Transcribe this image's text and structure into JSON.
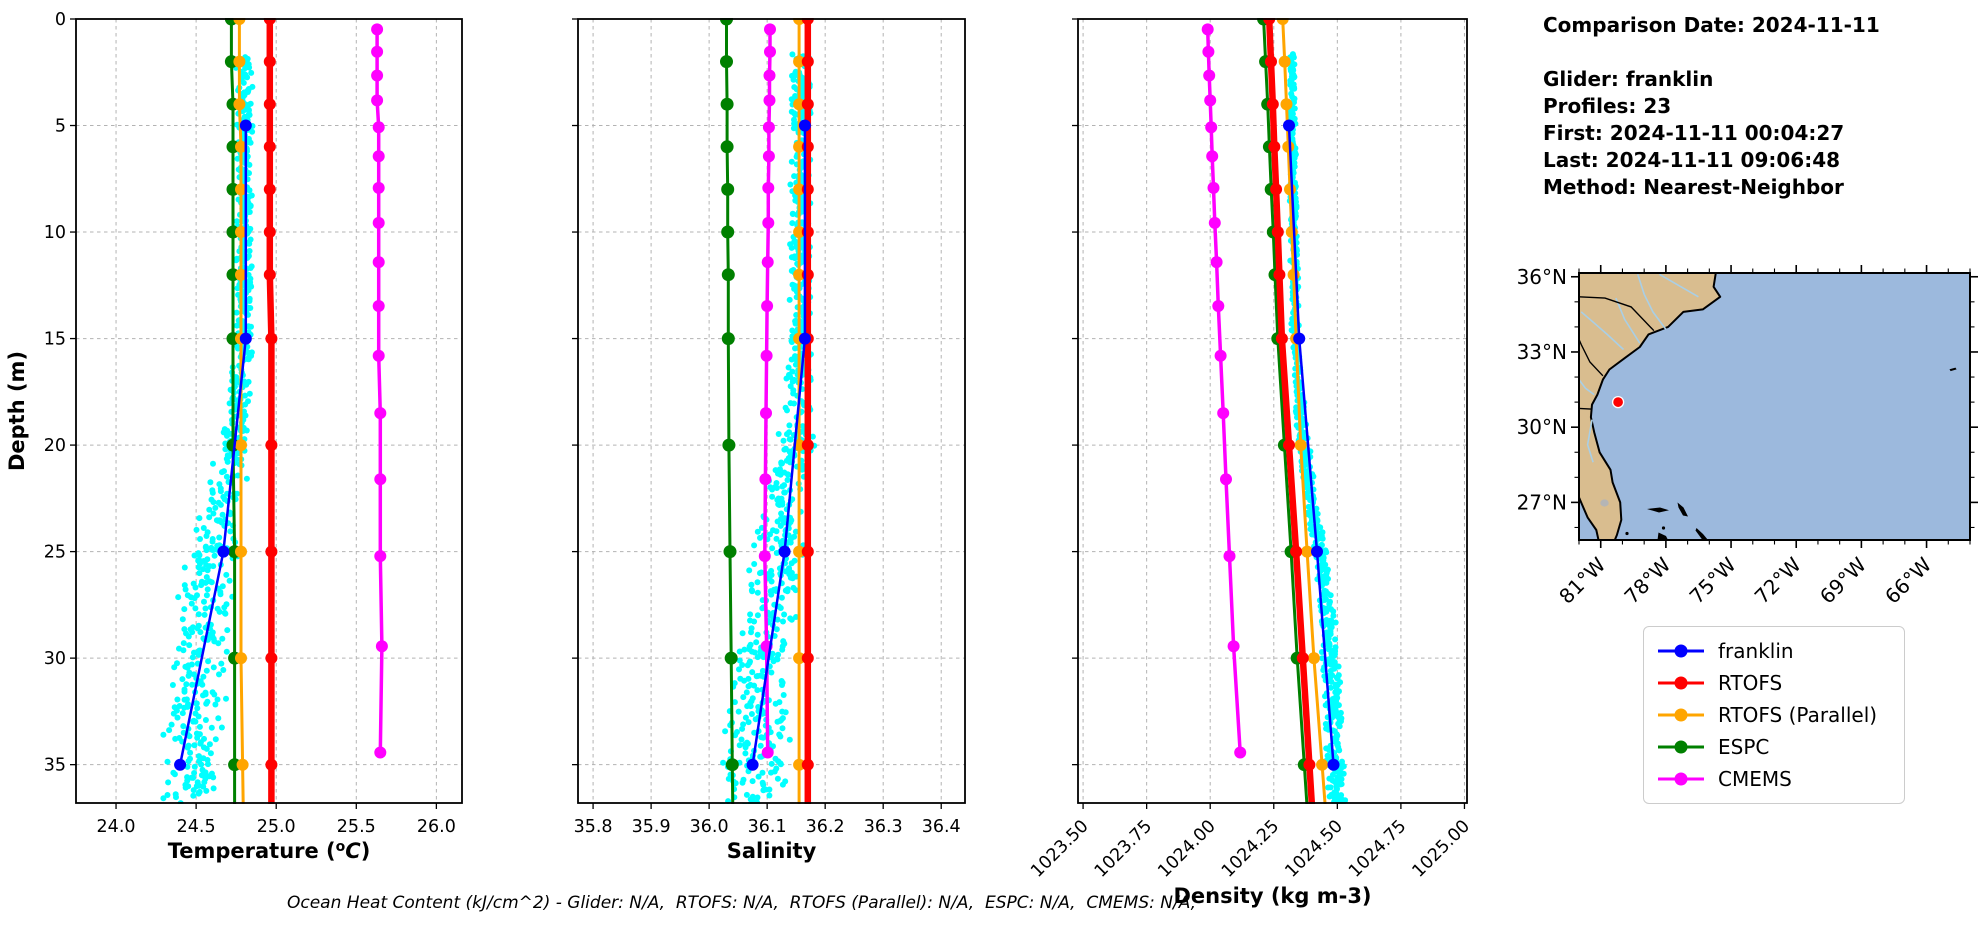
{
  "info_panel": {
    "comparison_date": "Comparison Date: 2024-11-11",
    "glider": "Glider: franklin",
    "profiles": "Profiles: 23",
    "first": "First: 2024-11-11 00:04:27",
    "last": "Last: 2024-11-11 09:06:48",
    "method": "Method: Nearest-Neighbor"
  },
  "footer_note": "Ocean Heat Content (kJ/cm^2) - Glider: N/A,  RTOFS: N/A,  RTOFS (Parallel): N/A,  ESPC: N/A,  CMEMS: N/A,",
  "legend": {
    "items": [
      {
        "label": "franklin",
        "color": "#0000ff"
      },
      {
        "label": "RTOFS",
        "color": "#ff0000"
      },
      {
        "label": "RTOFS (Parallel)",
        "color": "#ffa500"
      },
      {
        "label": "ESPC",
        "color": "#008000"
      },
      {
        "label": "CMEMS",
        "color": "#ff00ff"
      }
    ]
  },
  "map": {
    "extent_lon": [
      -82,
      -64
    ],
    "extent_lat": [
      25.5,
      36.15
    ],
    "lat_tick_labels": [
      "36°N",
      "33°N",
      "30°N",
      "27°N"
    ],
    "lat_tick_values": [
      36,
      33,
      30,
      27
    ],
    "lon_tick_labels": [
      "81°W",
      "78°W",
      "75°W",
      "72°W",
      "69°W",
      "66°W"
    ],
    "lon_tick_values": [
      -81,
      -78,
      -75,
      -72,
      -69,
      -66
    ],
    "glider_location": {
      "lon": -80.2,
      "lat": 31.0
    },
    "marker_color": "#ff0000",
    "land_color": "#d9bd8f",
    "ocean_color": "#9cb9dd",
    "river_color": "#a9cfe6",
    "lake_color": "#b5b5b5"
  },
  "chart_data": [
    {
      "type": "line",
      "name": "temperature",
      "xlabel": "Temperature (°C)",
      "ylabel": "Depth (m)",
      "xlim": [
        23.75,
        26.16
      ],
      "ylim": [
        0,
        36.8
      ],
      "grid": true,
      "xticks": [
        24.0,
        24.5,
        25.0,
        25.5,
        26.0
      ],
      "xtick_labels": [
        "24.0",
        "24.5",
        "25.0",
        "25.5",
        "26.0"
      ],
      "yticks": [
        0,
        5,
        10,
        15,
        20,
        25,
        30,
        35
      ],
      "ytick_labels": [
        "0",
        "5",
        "10",
        "15",
        "20",
        "25",
        "30",
        "35"
      ],
      "rotate_xtick_labels": false,
      "series": [
        {
          "name": "CMEMS",
          "color": "#ff00ff",
          "line_width": 3.5,
          "marker_radius": 6,
          "extend_to_bottom": false,
          "depths": [
            0.49,
            1.54,
            2.65,
            3.82,
            5.08,
            6.44,
            7.93,
            9.57,
            11.41,
            13.47,
            15.81,
            18.5,
            21.6,
            25.21,
            29.44,
            34.43
          ],
          "values": [
            25.63,
            25.63,
            25.63,
            25.63,
            25.64,
            25.64,
            25.64,
            25.64,
            25.64,
            25.64,
            25.64,
            25.65,
            25.65,
            25.65,
            25.66,
            25.65
          ]
        },
        {
          "name": "ESPC",
          "color": "#008000",
          "line_width": 3,
          "marker_radius": 6.5,
          "extend_to_bottom": true,
          "depths": [
            0,
            2,
            4,
            6,
            8,
            10,
            12,
            15,
            20,
            25,
            30,
            35
          ],
          "values": [
            24.72,
            24.72,
            24.73,
            24.73,
            24.73,
            24.73,
            24.73,
            24.73,
            24.73,
            24.74,
            24.74,
            24.74
          ]
        },
        {
          "name": "RTOFS (Parallel)",
          "color": "#ffa500",
          "line_width": 3,
          "marker_radius": 6,
          "extend_to_bottom": true,
          "depths": [
            0,
            2,
            4,
            6,
            8,
            10,
            12,
            15,
            20,
            25,
            30,
            35
          ],
          "values": [
            24.77,
            24.77,
            24.77,
            24.78,
            24.78,
            24.78,
            24.78,
            24.78,
            24.78,
            24.78,
            24.78,
            24.79
          ]
        },
        {
          "name": "RTOFS",
          "color": "#ff0000",
          "line_width": 6.5,
          "marker_radius": 6,
          "extend_to_bottom": true,
          "depths": [
            0,
            2,
            4,
            6,
            8,
            10,
            12,
            15,
            20,
            25,
            30,
            35
          ],
          "values": [
            24.96,
            24.96,
            24.96,
            24.96,
            24.96,
            24.96,
            24.96,
            24.97,
            24.97,
            24.97,
            24.97,
            24.97
          ]
        },
        {
          "name": "franklin",
          "color": "#0000ff",
          "line_width": 2.5,
          "marker_radius": 6,
          "extend_to_bottom": false,
          "depths": [
            5,
            15,
            25,
            35
          ],
          "values": [
            24.81,
            24.81,
            24.67,
            24.4
          ]
        }
      ],
      "glider_scatter": {
        "color": "#00ffff",
        "marker_radius": 3,
        "n_points": 750,
        "depth_range": [
          1.6,
          37.2
        ],
        "profile_depths": [
          1.6,
          15,
          20,
          25,
          30,
          37
        ],
        "profile_values": [
          24.8,
          24.8,
          24.74,
          24.61,
          24.5,
          24.46
        ],
        "spread": [
          0.035,
          0.04,
          0.07,
          0.12,
          0.14,
          0.13
        ]
      }
    },
    {
      "type": "line",
      "name": "salinity",
      "xlabel": "Salinity",
      "ylabel": "",
      "xlim": [
        35.774,
        36.441
      ],
      "ylim": [
        0,
        36.8
      ],
      "grid": true,
      "xticks": [
        35.8,
        35.9,
        36.0,
        36.1,
        36.2,
        36.3,
        36.4
      ],
      "xtick_labels": [
        "35.8",
        "35.9",
        "36.0",
        "36.1",
        "36.2",
        "36.3",
        "36.4"
      ],
      "yticks": [
        0,
        5,
        10,
        15,
        20,
        25,
        30,
        35
      ],
      "ytick_labels": [],
      "rotate_xtick_labels": false,
      "series": [
        {
          "name": "CMEMS",
          "color": "#ff00ff",
          "line_width": 3.5,
          "marker_radius": 6,
          "extend_to_bottom": false,
          "depths": [
            0.49,
            1.54,
            2.65,
            3.82,
            5.08,
            6.44,
            7.93,
            9.57,
            11.41,
            13.47,
            15.81,
            18.5,
            21.6,
            25.21,
            29.44,
            34.43
          ],
          "values": [
            36.105,
            36.105,
            36.104,
            36.104,
            36.103,
            36.103,
            36.102,
            36.102,
            36.101,
            36.1,
            36.099,
            36.098,
            36.097,
            36.096,
            36.099,
            36.101
          ]
        },
        {
          "name": "ESPC",
          "color": "#008000",
          "line_width": 3,
          "marker_radius": 6.5,
          "extend_to_bottom": true,
          "depths": [
            0,
            2,
            4,
            6,
            8,
            10,
            12,
            15,
            20,
            25,
            30,
            35
          ],
          "values": [
            36.03,
            36.03,
            36.031,
            36.031,
            36.032,
            36.032,
            36.033,
            36.033,
            36.034,
            36.036,
            36.038,
            36.04
          ]
        },
        {
          "name": "RTOFS (Parallel)",
          "color": "#ffa500",
          "line_width": 3,
          "marker_radius": 6,
          "extend_to_bottom": true,
          "depths": [
            0,
            2,
            4,
            6,
            8,
            10,
            12,
            15,
            20,
            25,
            30,
            35
          ],
          "values": [
            36.155,
            36.155,
            36.155,
            36.155,
            36.155,
            36.155,
            36.155,
            36.155,
            36.155,
            36.155,
            36.155,
            36.155
          ]
        },
        {
          "name": "RTOFS",
          "color": "#ff0000",
          "line_width": 6.5,
          "marker_radius": 6,
          "extend_to_bottom": true,
          "depths": [
            0,
            2,
            4,
            6,
            8,
            10,
            12,
            15,
            20,
            25,
            30,
            35
          ],
          "values": [
            36.17,
            36.17,
            36.17,
            36.17,
            36.17,
            36.17,
            36.17,
            36.17,
            36.17,
            36.17,
            36.17,
            36.17
          ]
        },
        {
          "name": "franklin",
          "color": "#0000ff",
          "line_width": 2.5,
          "marker_radius": 6,
          "extend_to_bottom": false,
          "depths": [
            5,
            15,
            25,
            35
          ],
          "values": [
            36.165,
            36.165,
            36.13,
            36.075
          ]
        }
      ],
      "glider_scatter": {
        "color": "#00ffff",
        "marker_radius": 3,
        "n_points": 750,
        "depth_range": [
          1.6,
          37.2
        ],
        "profile_depths": [
          1.6,
          15,
          20,
          25,
          30,
          37
        ],
        "profile_values": [
          36.158,
          36.158,
          36.148,
          36.118,
          36.09,
          36.07
        ],
        "spread": [
          0.012,
          0.014,
          0.025,
          0.035,
          0.04,
          0.042
        ]
      }
    },
    {
      "type": "line",
      "name": "density",
      "xlabel": "Density (kg m-3)",
      "ylabel": "",
      "xlim": [
        1023.48,
        1025.01
      ],
      "ylim": [
        0,
        36.8
      ],
      "grid": true,
      "xticks": [
        1023.5,
        1023.75,
        1024.0,
        1024.25,
        1024.5,
        1024.75,
        1025.0
      ],
      "xtick_labels": [
        "1023.50",
        "1023.75",
        "1024.00",
        "1024.25",
        "1024.50",
        "1024.75",
        "1025.00"
      ],
      "yticks": [
        0,
        5,
        10,
        15,
        20,
        25,
        30,
        35
      ],
      "ytick_labels": [],
      "rotate_xtick_labels": true,
      "series": [
        {
          "name": "CMEMS",
          "color": "#ff00ff",
          "line_width": 3.5,
          "marker_radius": 6,
          "extend_to_bottom": false,
          "depths": [
            0.49,
            1.54,
            2.65,
            3.82,
            5.08,
            6.44,
            7.93,
            9.57,
            11.41,
            13.47,
            15.81,
            18.5,
            21.6,
            25.21,
            29.44,
            34.43
          ],
          "values": [
            1023.99,
            1023.993,
            1023.996,
            1024.0,
            1024.004,
            1024.008,
            1024.013,
            1024.018,
            1024.025,
            1024.032,
            1024.041,
            1024.051,
            1024.062,
            1024.076,
            1024.092,
            1024.118
          ]
        },
        {
          "name": "ESPC",
          "color": "#008000",
          "line_width": 3,
          "marker_radius": 6.5,
          "extend_to_bottom": true,
          "depths": [
            0,
            2,
            4,
            6,
            8,
            10,
            12,
            15,
            20,
            25,
            30,
            35
          ],
          "values": [
            1024.21,
            1024.218,
            1024.226,
            1024.233,
            1024.24,
            1024.248,
            1024.255,
            1024.266,
            1024.292,
            1024.318,
            1024.342,
            1024.37
          ]
        },
        {
          "name": "RTOFS (Parallel)",
          "color": "#ffa500",
          "line_width": 3,
          "marker_radius": 6,
          "extend_to_bottom": true,
          "depths": [
            0,
            2,
            4,
            6,
            8,
            10,
            12,
            15,
            20,
            25,
            30,
            35
          ],
          "values": [
            1024.285,
            1024.293,
            1024.3,
            1024.307,
            1024.314,
            1024.321,
            1024.328,
            1024.338,
            1024.356,
            1024.381,
            1024.408,
            1024.44
          ]
        },
        {
          "name": "RTOFS",
          "color": "#ff0000",
          "line_width": 6.5,
          "marker_radius": 6,
          "extend_to_bottom": true,
          "depths": [
            0,
            2,
            4,
            6,
            8,
            10,
            12,
            15,
            20,
            25,
            30,
            35
          ],
          "values": [
            1024.232,
            1024.239,
            1024.246,
            1024.252,
            1024.259,
            1024.266,
            1024.272,
            1024.282,
            1024.31,
            1024.338,
            1024.364,
            1024.39
          ]
        },
        {
          "name": "franklin",
          "color": "#0000ff",
          "line_width": 2.5,
          "marker_radius": 6,
          "extend_to_bottom": false,
          "depths": [
            5,
            15,
            25,
            35
          ],
          "values": [
            1024.31,
            1024.35,
            1024.42,
            1024.485
          ]
        }
      ],
      "glider_scatter": {
        "color": "#00ffff",
        "marker_radius": 3,
        "n_points": 750,
        "depth_range": [
          1.6,
          37.2
        ],
        "profile_depths": [
          1.6,
          15,
          20,
          25,
          30,
          37
        ],
        "profile_values": [
          1024.32,
          1024.335,
          1024.365,
          1024.43,
          1024.475,
          1024.5
        ],
        "spread": [
          0.008,
          0.012,
          0.018,
          0.022,
          0.026,
          0.026
        ]
      }
    }
  ]
}
